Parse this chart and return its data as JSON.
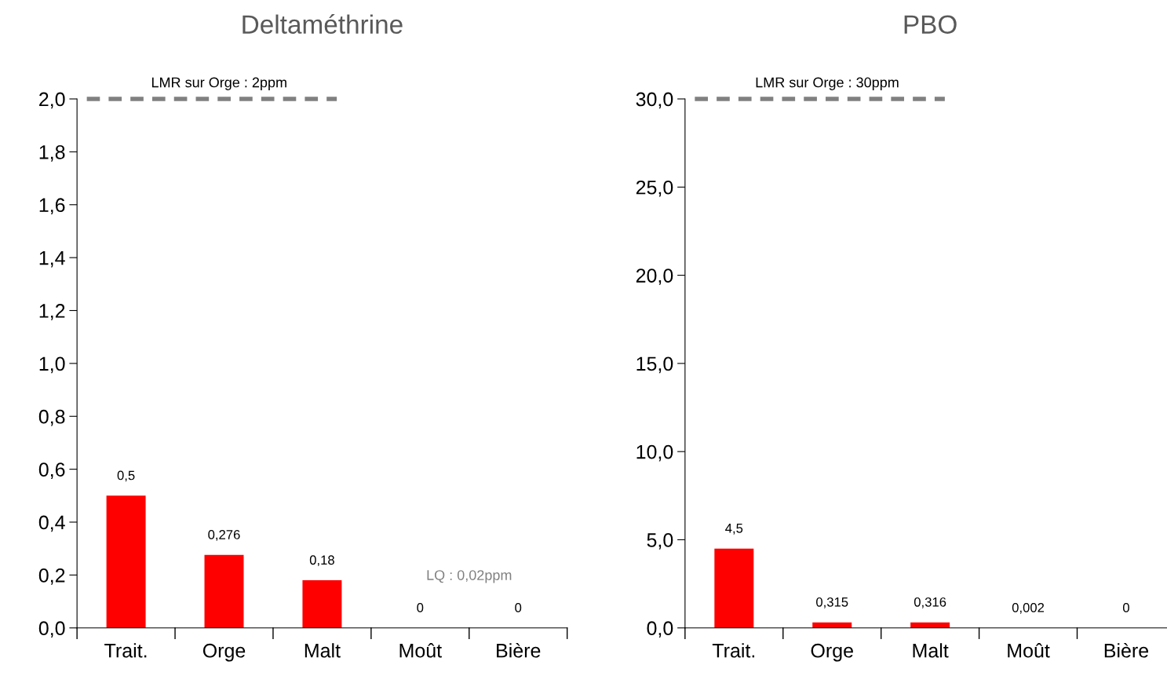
{
  "chart_data": [
    {
      "type": "bar",
      "title": "Deltaméthrine",
      "categories": [
        "Trait.",
        "Orge",
        "Malt",
        "Moût",
        "Bière"
      ],
      "values": [
        0.5,
        0.276,
        0.18,
        0,
        0
      ],
      "color": "#ff0000",
      "value_labels": [
        "0,5",
        "0,276",
        "0,18",
        "0",
        "0"
      ],
      "ylim": [
        0,
        2
      ],
      "yticks": [
        {
          "value": 0,
          "label": "0,0"
        },
        {
          "value": 0.2,
          "label": "0,2"
        },
        {
          "value": 0.4,
          "label": "0,4"
        },
        {
          "value": 0.6,
          "label": "0,6"
        },
        {
          "value": 0.8,
          "label": "0,8"
        },
        {
          "value": 1.0,
          "label": "1,0"
        },
        {
          "value": 1.2,
          "label": "1,2"
        },
        {
          "value": 1.4,
          "label": "1,4"
        },
        {
          "value": 1.6,
          "label": "1,6"
        },
        {
          "value": 1.8,
          "label": "1,8"
        },
        {
          "value": 2.0,
          "label": "2,0"
        }
      ],
      "ref_lines": [
        {
          "axis": "y",
          "value": 2,
          "label": "LMR sur Orge : 2ppm",
          "color": "#808080",
          "line_style": "dashed"
        }
      ],
      "annotations": [
        "LQ : 0,02ppm"
      ],
      "grid": false,
      "legend": false
    },
    {
      "type": "bar",
      "title": "PBO",
      "categories": [
        "Trait.",
        "Orge",
        "Malt",
        "Moût",
        "Bière"
      ],
      "values": [
        4.5,
        0.315,
        0.316,
        0.002,
        0
      ],
      "color": "#ff0000",
      "value_labels": [
        "4,5",
        "0,315",
        "0,316",
        "0,002",
        "0"
      ],
      "ylim": [
        0,
        30
      ],
      "yticks": [
        {
          "value": 0,
          "label": "0,0"
        },
        {
          "value": 5,
          "label": "5,0"
        },
        {
          "value": 10,
          "label": "10,0"
        },
        {
          "value": 15,
          "label": "15,0"
        },
        {
          "value": 20,
          "label": "20,0"
        },
        {
          "value": 25,
          "label": "25,0"
        },
        {
          "value": 30,
          "label": "30,0"
        }
      ],
      "ref_lines": [
        {
          "axis": "y",
          "value": 30,
          "label": "LMR sur Orge : 30ppm",
          "color": "#808080",
          "line_style": "dashed"
        }
      ],
      "grid": false,
      "legend": false
    }
  ]
}
